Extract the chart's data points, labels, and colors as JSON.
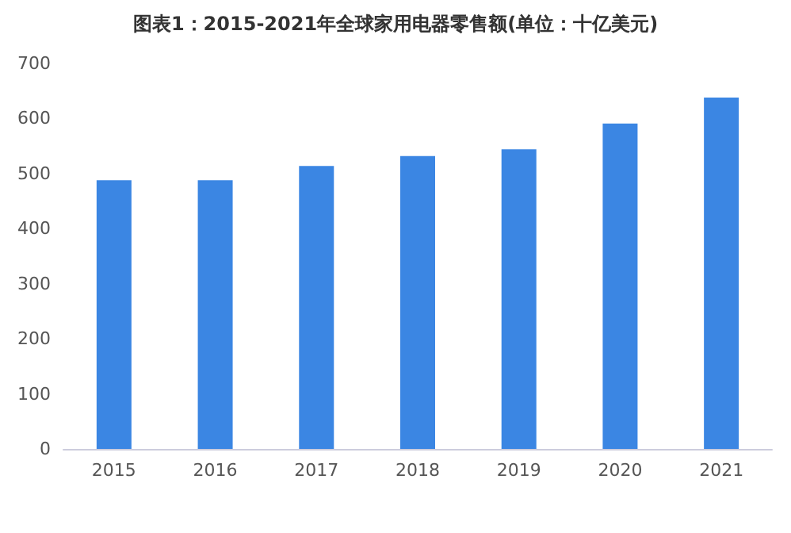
{
  "chart_data": {
    "type": "bar",
    "title": "图表1：2015-2021年全球家用电器零售额(单位：十亿美元)",
    "categories": [
      "2015",
      "2016",
      "2017",
      "2018",
      "2019",
      "2020",
      "2021"
    ],
    "values": [
      488,
      488,
      514,
      532,
      544,
      591,
      638
    ],
    "color": "#3b86e3",
    "ylim": [
      0,
      700
    ],
    "yticks": [
      0,
      100,
      200,
      300,
      400,
      500,
      600,
      700
    ],
    "grid": false
  }
}
